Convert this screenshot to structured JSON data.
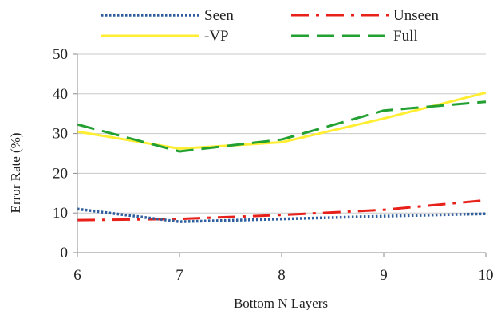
{
  "chart_data": {
    "type": "line",
    "title": "",
    "xlabel": "Bottom N Layers",
    "ylabel": "Error Rate (%)",
    "x": [
      6,
      7,
      8,
      9,
      10
    ],
    "xlim": [
      6,
      10
    ],
    "ylim": [
      0,
      50
    ],
    "xticks": [
      "6",
      "7",
      "8",
      "9",
      "10"
    ],
    "yticks": [
      "0",
      "10",
      "20",
      "30",
      "40",
      "50"
    ],
    "grid": "horizontal",
    "legend_position": "top",
    "series": [
      {
        "name": "Seen",
        "values": [
          11.0,
          7.8,
          8.5,
          9.2,
          9.8
        ],
        "color": "#2f5f9e",
        "style": "dotted"
      },
      {
        "name": "Unseen",
        "values": [
          8.2,
          8.5,
          9.5,
          10.8,
          13.2
        ],
        "color": "#e8201a",
        "style": "dash-dot"
      },
      {
        "name": "-VP",
        "values": [
          30.5,
          26.2,
          27.8,
          33.8,
          40.3
        ],
        "color": "#ffee33",
        "style": "solid"
      },
      {
        "name": "Full",
        "values": [
          32.3,
          25.5,
          28.5,
          35.8,
          38.0
        ],
        "color": "#22a032",
        "style": "dashed"
      }
    ]
  }
}
